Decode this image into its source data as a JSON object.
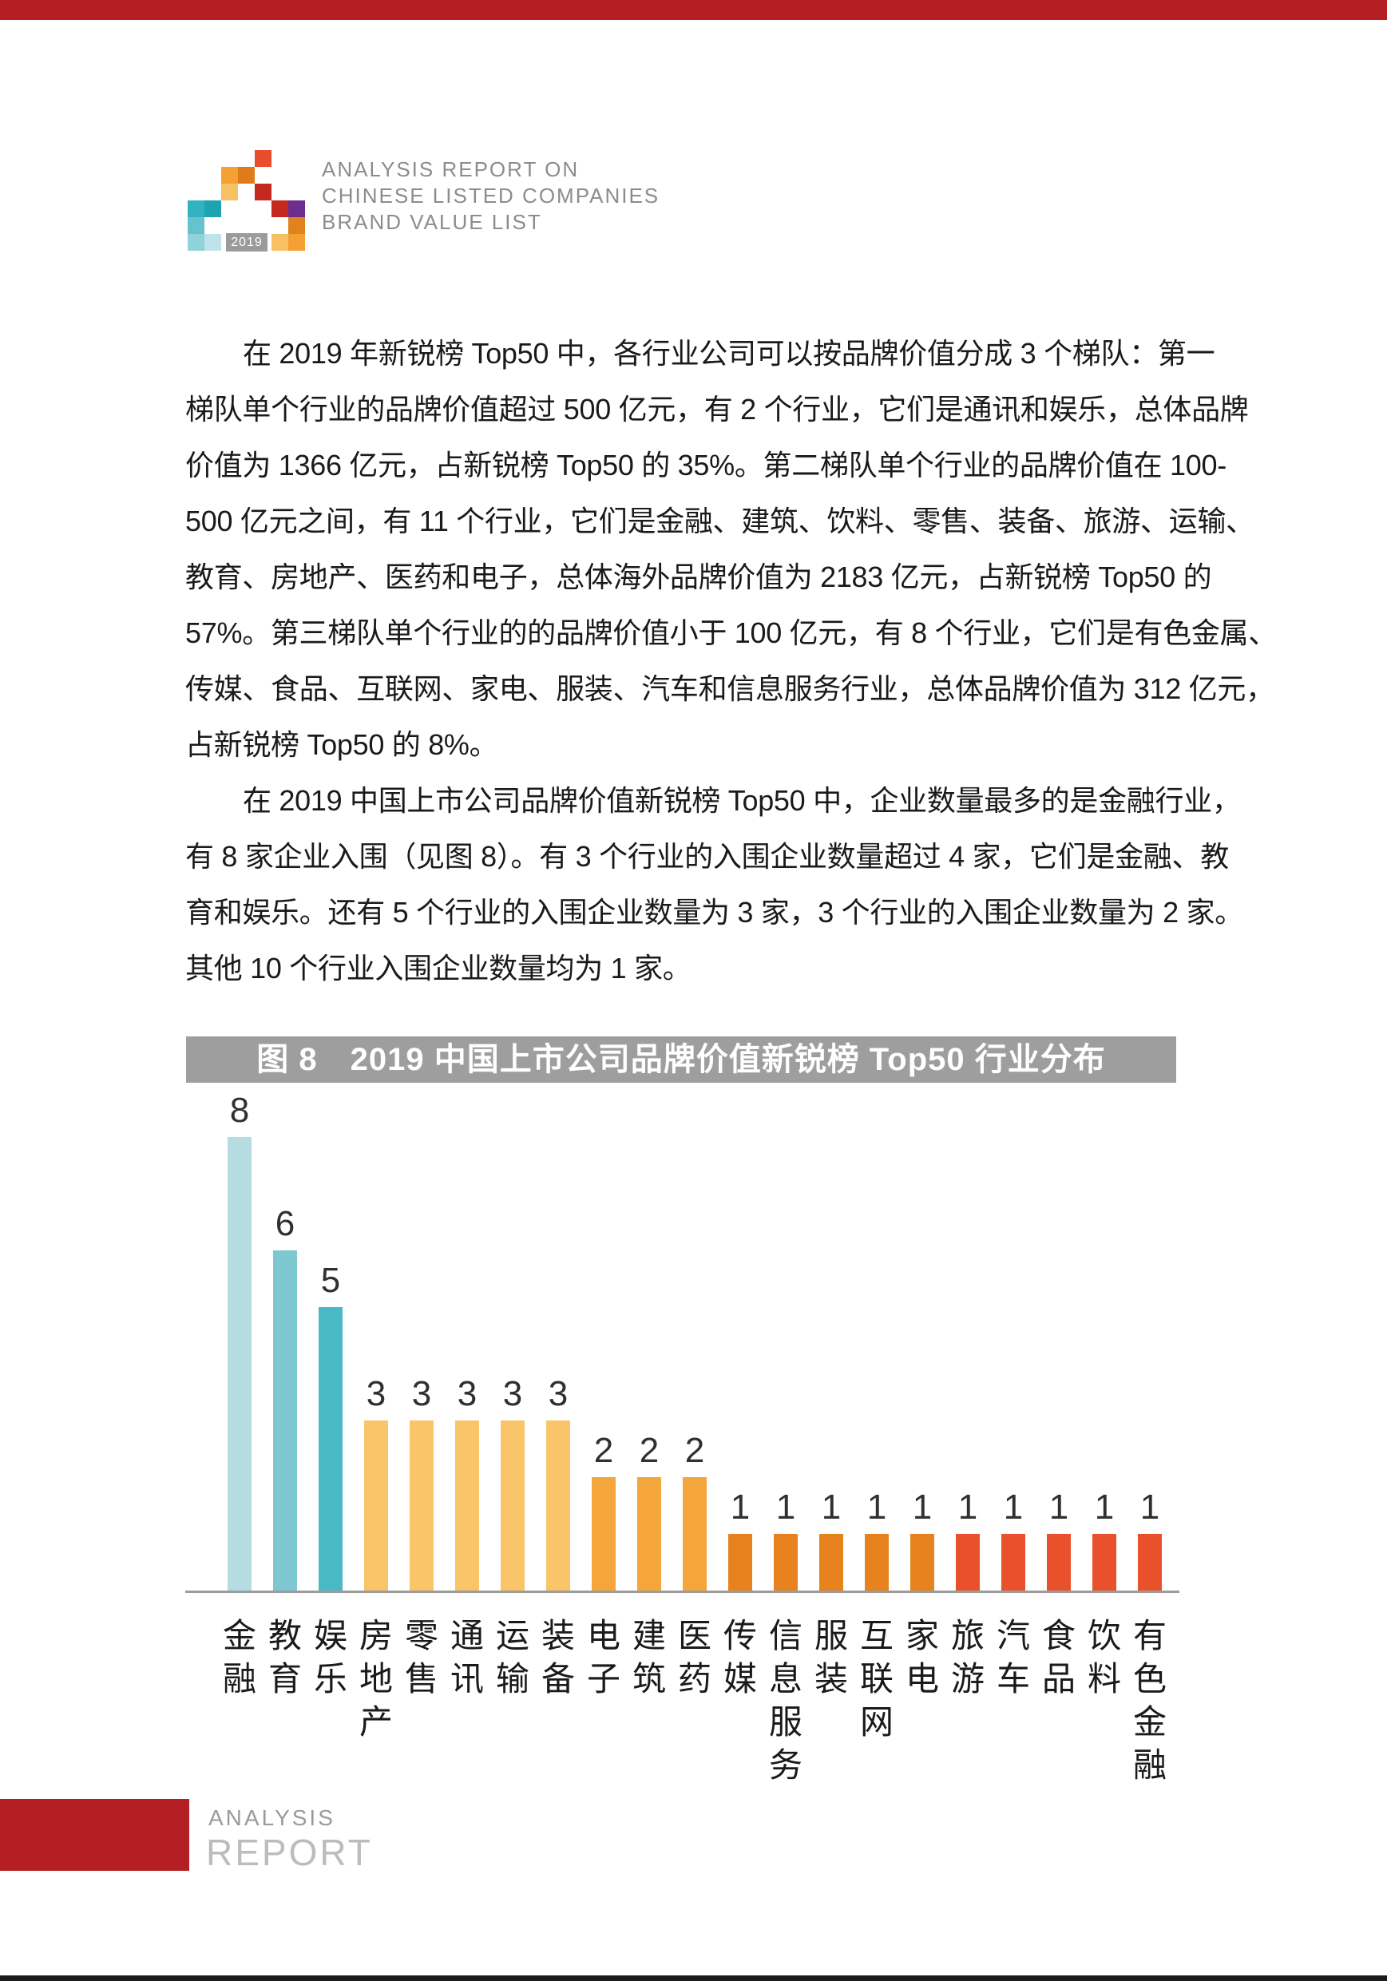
{
  "accents": {
    "top_bar_color": "#B41F24",
    "bottom_line_color": "#1b1b1b"
  },
  "logo": {
    "year_badge": "2019",
    "title_lines": [
      "ANALYSIS REPORT ON",
      "CHINESE LISTED COMPANIES",
      "BRAND VALUE LIST"
    ],
    "squares": [
      {
        "col": 4,
        "row": 0,
        "color": "#E84C2B"
      },
      {
        "col": 2,
        "row": 1,
        "color": "#F5A033"
      },
      {
        "col": 3,
        "row": 1,
        "color": "#E07B1A"
      },
      {
        "col": 2,
        "row": 2,
        "color": "#F7C063"
      },
      {
        "col": 4,
        "row": 2,
        "color": "#C4281E"
      },
      {
        "col": 0,
        "row": 3,
        "color": "#33B3BF"
      },
      {
        "col": 1,
        "row": 3,
        "color": "#1CA4B2"
      },
      {
        "col": 5,
        "row": 3,
        "color": "#C4281E"
      },
      {
        "col": 6,
        "row": 3,
        "color": "#6C2E8C"
      },
      {
        "col": 0,
        "row": 4,
        "color": "#66C3CE"
      },
      {
        "col": 6,
        "row": 4,
        "color": "#E0821E"
      },
      {
        "col": 0,
        "row": 5,
        "color": "#8FD2DA"
      },
      {
        "col": 1,
        "row": 5,
        "color": "#BEE3E8"
      },
      {
        "col": 5,
        "row": 5,
        "color": "#F7C063"
      },
      {
        "col": 6,
        "row": 5,
        "color": "#F5A033"
      }
    ]
  },
  "body": {
    "lines": [
      {
        "text": "在 2019 年新锐榜 Top50 中，各行业公司可以按品牌价值分成 3 个梯队：第一",
        "indent": true
      },
      {
        "text": "梯队单个行业的品牌价值超过 500 亿元，有 2 个行业，它们是通讯和娱乐，总体品牌",
        "indent": false
      },
      {
        "text": "价值为 1366 亿元，占新锐榜 Top50 的 35%。第二梯队单个行业的品牌价值在 100-",
        "indent": false
      },
      {
        "text": "500 亿元之间，有 11 个行业，它们是金融、建筑、饮料、零售、装备、旅游、运输、",
        "indent": false
      },
      {
        "text": "教育、房地产、医药和电子，总体海外品牌价值为 2183 亿元，占新锐榜 Top50 的",
        "indent": false
      },
      {
        "text": "57%。第三梯队单个行业的的品牌价值小于 100 亿元，有 8 个行业，它们是有色金属、",
        "indent": false
      },
      {
        "text": "传媒、食品、互联网、家电、服装、汽车和信息服务行业，总体品牌价值为 312 亿元，",
        "indent": false
      },
      {
        "text": "占新锐榜 Top50 的 8%。",
        "indent": false
      },
      {
        "text": "在 2019 中国上市公司品牌价值新锐榜 Top50 中，企业数量最多的是金融行业，",
        "indent": true
      },
      {
        "text": "有 8 家企业入围（见图 8）。有 3 个行业的入围企业数量超过 4 家，它们是金融、教",
        "indent": false
      },
      {
        "text": "育和娱乐。还有 5 个行业的入围企业数量为 3 家，3 个行业的入围企业数量为 2 家。",
        "indent": false
      },
      {
        "text": "其他 10 个行业入围企业数量均为 1 家。",
        "indent": false
      }
    ]
  },
  "figure": {
    "banner_title": "图 8　2019 中国上市公司品牌价值新锐榜 Top50 行业分布",
    "banner_bg": "#9E9E9E"
  },
  "chart_data": {
    "type": "bar",
    "title": "图 8 2019 中国上市公司品牌价值新锐榜 Top50 行业分布",
    "categories": [
      "金融",
      "教育",
      "娱乐",
      "房地产",
      "零售",
      "通讯",
      "运输",
      "装备",
      "电子",
      "建筑",
      "医药",
      "传媒",
      "信息服务",
      "服装",
      "互联网",
      "家电",
      "旅游",
      "汽车",
      "食品",
      "饮料",
      "有色金融"
    ],
    "values": [
      8,
      6,
      5,
      3,
      3,
      3,
      3,
      3,
      2,
      2,
      2,
      1,
      1,
      1,
      1,
      1,
      1,
      1,
      1,
      1,
      1
    ],
    "bar_colors": [
      "#B5DCE1",
      "#7CC7D0",
      "#49B9C6",
      "#F9C568",
      "#F9C568",
      "#F9C568",
      "#F9C568",
      "#F9C568",
      "#F4A63C",
      "#F4A63C",
      "#F4A63C",
      "#E7821E",
      "#E7821E",
      "#E7821E",
      "#E7821E",
      "#E7821E",
      "#E8512B",
      "#E8512B",
      "#E8512B",
      "#E8512B",
      "#E8512B"
    ],
    "value_labels": [
      "8",
      "6",
      "5",
      "3",
      "3",
      "3",
      "3",
      "3",
      "2",
      "2",
      "2",
      "1",
      "1",
      "1",
      "1",
      "1",
      "1",
      "1",
      "1",
      "1",
      "1"
    ],
    "xlabel": "",
    "ylabel": "",
    "ylim": [
      0,
      8.5
    ],
    "grid": false,
    "legend": false,
    "axis_color": "#9c9c9c"
  },
  "footer": {
    "block_color": "#B41F24",
    "line1": "ANALYSIS",
    "line2": "REPORT"
  }
}
